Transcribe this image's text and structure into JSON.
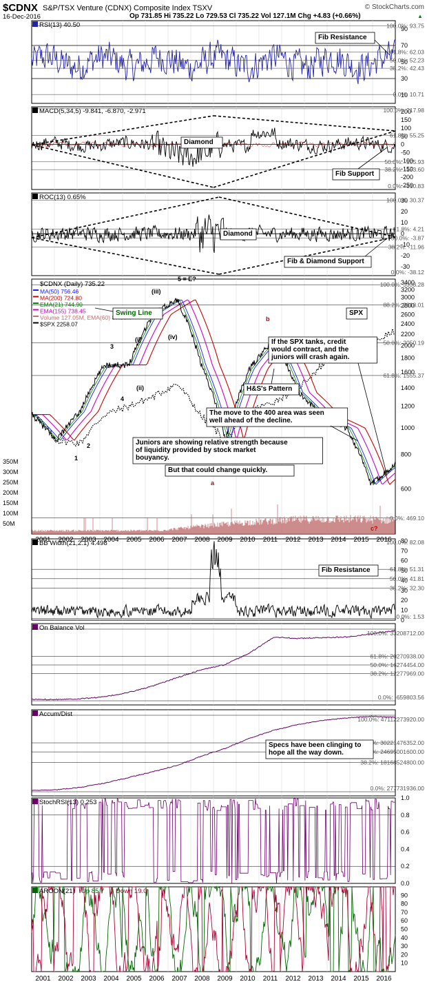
{
  "header": {
    "symbol": "$CDNX",
    "name": "S&P/TSX Venture (CDNX) Composite Index  TSXV",
    "source": "© StockCharts.com",
    "date": "16-Dec-2016",
    "quote": "Op 731.85  Hi 735.22  Lo 729.53  Cl 735.22  Vol 127.1M  Chg +4.83 (+0.66%)",
    "quote_arrow": "▲"
  },
  "years": [
    "2001",
    "2002",
    "2003",
    "2004",
    "2005",
    "2006",
    "2007",
    "2008",
    "2009",
    "2010",
    "2011",
    "2012",
    "2013",
    "2014",
    "2015",
    "2016"
  ],
  "colors": {
    "rsi": "#2222aa",
    "black": "#000000",
    "ma50": "#1a1aff",
    "ma200": "#cc0000",
    "ema21": "#008800",
    "ema155": "#cc00cc",
    "volume": "#c07070",
    "obv": "#660066",
    "stoch": "#6a006a",
    "aroon_up": "#006600",
    "aroon_down": "#aa0033",
    "fib_label": "#555555"
  },
  "chart_data": [
    {
      "type": "line",
      "id": "rsi",
      "title": "RSI(13) 40.50",
      "y_ticks": [
        "90",
        "70",
        "50",
        "30",
        "10"
      ],
      "ylim": [
        0,
        100
      ],
      "reference_lines": [
        70,
        30
      ],
      "fib_labels": [
        "100.0%: 93.75",
        "61.8%: 62.03",
        "50.0%: 52.23",
        "38.2%: 42.43",
        "0.0%: 10.71"
      ],
      "fib_values": [
        93.75,
        62.03,
        52.23,
        42.43,
        10.71
      ],
      "annotations": [
        "Fib Resistance"
      ],
      "last_value": 40.5
    },
    {
      "type": "line",
      "id": "macd",
      "title": "MACD(5,34,5) -9.841, -6.870, -2.971",
      "y_ticks": [
        "200",
        "150",
        "100",
        "50",
        "0",
        "-50",
        "-100",
        "-150",
        "-200",
        "-250"
      ],
      "ylim": [
        -275,
        230
      ],
      "fib_labels": [
        "100.0%: 217.98",
        "61.8%: 55.25",
        "50.0%: -105.93",
        "38.2%: -153.60",
        "0.0%: -310.83"
      ],
      "fib_values": [
        217.98,
        55.25,
        -105.93,
        -153.6,
        -310.83
      ],
      "annotations": [
        "Diamond",
        "Fib Support"
      ]
    },
    {
      "type": "line",
      "id": "roc",
      "title": "ROC(13) 0.65%",
      "y_ticks": [
        "30",
        "20",
        "10",
        "0",
        "-10",
        "-20",
        "-30"
      ],
      "ylim": [
        -38,
        37
      ],
      "fib_labels": [
        "100.0%: 30.37",
        "61.8%: 4.21",
        "50.0%: -3.87",
        "38.2%: -11.96",
        "0.0%: -38.12"
      ],
      "fib_values": [
        30.37,
        4.21,
        -3.87,
        -11.96,
        -38.12
      ],
      "annotations": [
        "Diamond",
        "Fib & Diamond Support"
      ]
    },
    {
      "type": "line",
      "id": "price",
      "title": "$CDNX (Daily) 735.22",
      "log_scale": true,
      "y_ticks": [
        "3400",
        "3200",
        "3000",
        "2800",
        "2600",
        "2400",
        "2200",
        "2000",
        "1800",
        "1600",
        "1400",
        "1200",
        "1000",
        "800",
        "600"
      ],
      "ylim": [
        410,
        3500
      ],
      "volume_ticks": [
        "350M",
        "300M",
        "250M",
        "200M",
        "150M",
        "100M",
        "50M"
      ],
      "volume_ylim": [
        0,
        400
      ],
      "legend": [
        "MA(50) 756.46",
        "MA(200) 724.80",
        "EMA(21) 744.90",
        "EMA(155) 738.45",
        "Volume 127.05M, EMA(60) 87.38M",
        "$SPX 2258.07"
      ],
      "fib_labels": [
        "100.0%: 3338.28",
        "88.2%: 2818.01",
        "50.0%: 2050.19",
        "61.8%: 1555.37",
        "0.0%: 469.10"
      ],
      "fib_values": [
        3338.28,
        2818.01,
        2050.19,
        1555.37,
        469.1
      ],
      "wave_labels": [
        "(iii)",
        "5 = E?",
        "(i)",
        "3",
        "(ii)",
        "(iv)",
        "4",
        "1",
        "2",
        "b",
        "a",
        "c?"
      ],
      "annotations": [
        "Swing Line",
        "SPX",
        "If the SPX tanks, credit would contract, and the juniors will crash again.",
        "H&S's Pattern",
        "The move to the 400 area was seen well ahead of the decline.",
        "Juniors are showing relative strength because of liquidity provided by stock market bouyancy.",
        "But that could change quickly."
      ],
      "x": [
        "2001",
        "2002",
        "2003",
        "2004",
        "2005",
        "2006",
        "2007",
        "2008",
        "2009",
        "2010",
        "2011",
        "2012",
        "2013",
        "2014",
        "2015",
        "2016"
      ],
      "series": [
        {
          "name": "$CDNX",
          "values": [
            1120,
            900,
            1150,
            1700,
            1700,
            2600,
            2950,
            1700,
            900,
            1650,
            2100,
            1350,
            1100,
            1000,
            620,
            740
          ]
        },
        {
          "name": "$SPX",
          "values": [
            1150,
            900,
            880,
            1120,
            1200,
            1300,
            1450,
            1100,
            900,
            1150,
            1250,
            1400,
            1700,
            2000,
            2050,
            2258
          ]
        }
      ]
    },
    {
      "type": "line",
      "id": "bbwidth",
      "title": "BB Width(21,2.1) 4.498",
      "y_ticks": [
        "80",
        "70",
        "60",
        "50",
        "40",
        "30",
        "20",
        "10",
        "0"
      ],
      "ylim": [
        0,
        82
      ],
      "fib_labels": [
        "100.0%: 82.08",
        "61.8%: 51.31",
        "50.0%: 41.81",
        "38.2%: 32.30",
        "0.0%: 1.53"
      ],
      "fib_values": [
        82.08,
        51.31,
        41.81,
        32.3,
        1.53
      ],
      "annotations": [
        "Fib Resistance"
      ]
    },
    {
      "type": "line",
      "id": "obv",
      "title": "On Balance Vol",
      "fib_labels": [
        "100.0%: 33208712.00",
        "61.8%: 20270938.00",
        "50.0%: 16274454.00",
        "38.2%: 12277969.00",
        "0.0%: -659803.56"
      ],
      "x": [
        "2001",
        "2002",
        "2003",
        "2004",
        "2005",
        "2006",
        "2007",
        "2008",
        "2009",
        "2010",
        "2011",
        "2012",
        "2013",
        "2014",
        "2015",
        "2016"
      ],
      "values": [
        0,
        0,
        300000,
        1200000,
        3300000,
        6300000,
        10300000,
        14000000,
        16500000,
        22000000,
        29500000,
        28800000,
        29200000,
        29500000,
        31000000,
        32500000
      ]
    },
    {
      "type": "line",
      "id": "accum",
      "title": "Accum/Dist",
      "fib_labels": [
        "100.0%: 47112273920.00",
        "61.8%: 30221476352.00",
        "50.0%: 24695001600.00",
        "38.2%: 18168524800.00",
        "0.0%: 277731936.00"
      ],
      "annotations": [
        "Specs have been clinging to hope all the way down."
      ],
      "x": [
        "2001",
        "2002",
        "2003",
        "2004",
        "2005",
        "2006",
        "2007",
        "2008",
        "2009",
        "2010",
        "2011",
        "2012",
        "2013",
        "2014",
        "2015",
        "2016"
      ],
      "values": [
        1000000000,
        1500000000,
        3000000000,
        5500000000,
        9000000000,
        12500000000,
        16500000000,
        22000000000,
        27000000000,
        33000000000,
        38000000000,
        41500000000,
        44000000000,
        45500000000,
        46500000000,
        46000000000
      ]
    },
    {
      "type": "line",
      "id": "stochrsi",
      "title": "StochRSI(13) 0.253",
      "y_ticks": [
        "1.0",
        "0.8",
        "0.6",
        "0.4",
        "0.2",
        "0.0"
      ],
      "ylim": [
        0,
        1
      ],
      "last_value": 0.253
    },
    {
      "type": "line",
      "id": "aroon",
      "title": "AROON(21) Up 85.7 Down 19.0",
      "title_parts": [
        "AROON(21)",
        "Up 85.7",
        "Down 19.0"
      ],
      "y_ticks": [
        "90",
        "80",
        "70",
        "60",
        "50",
        "40",
        "30",
        "20",
        "10"
      ],
      "ylim": [
        0,
        100
      ],
      "series": [
        {
          "name": "Up",
          "last": 85.7
        },
        {
          "name": "Down",
          "last": 19.0
        }
      ]
    }
  ]
}
